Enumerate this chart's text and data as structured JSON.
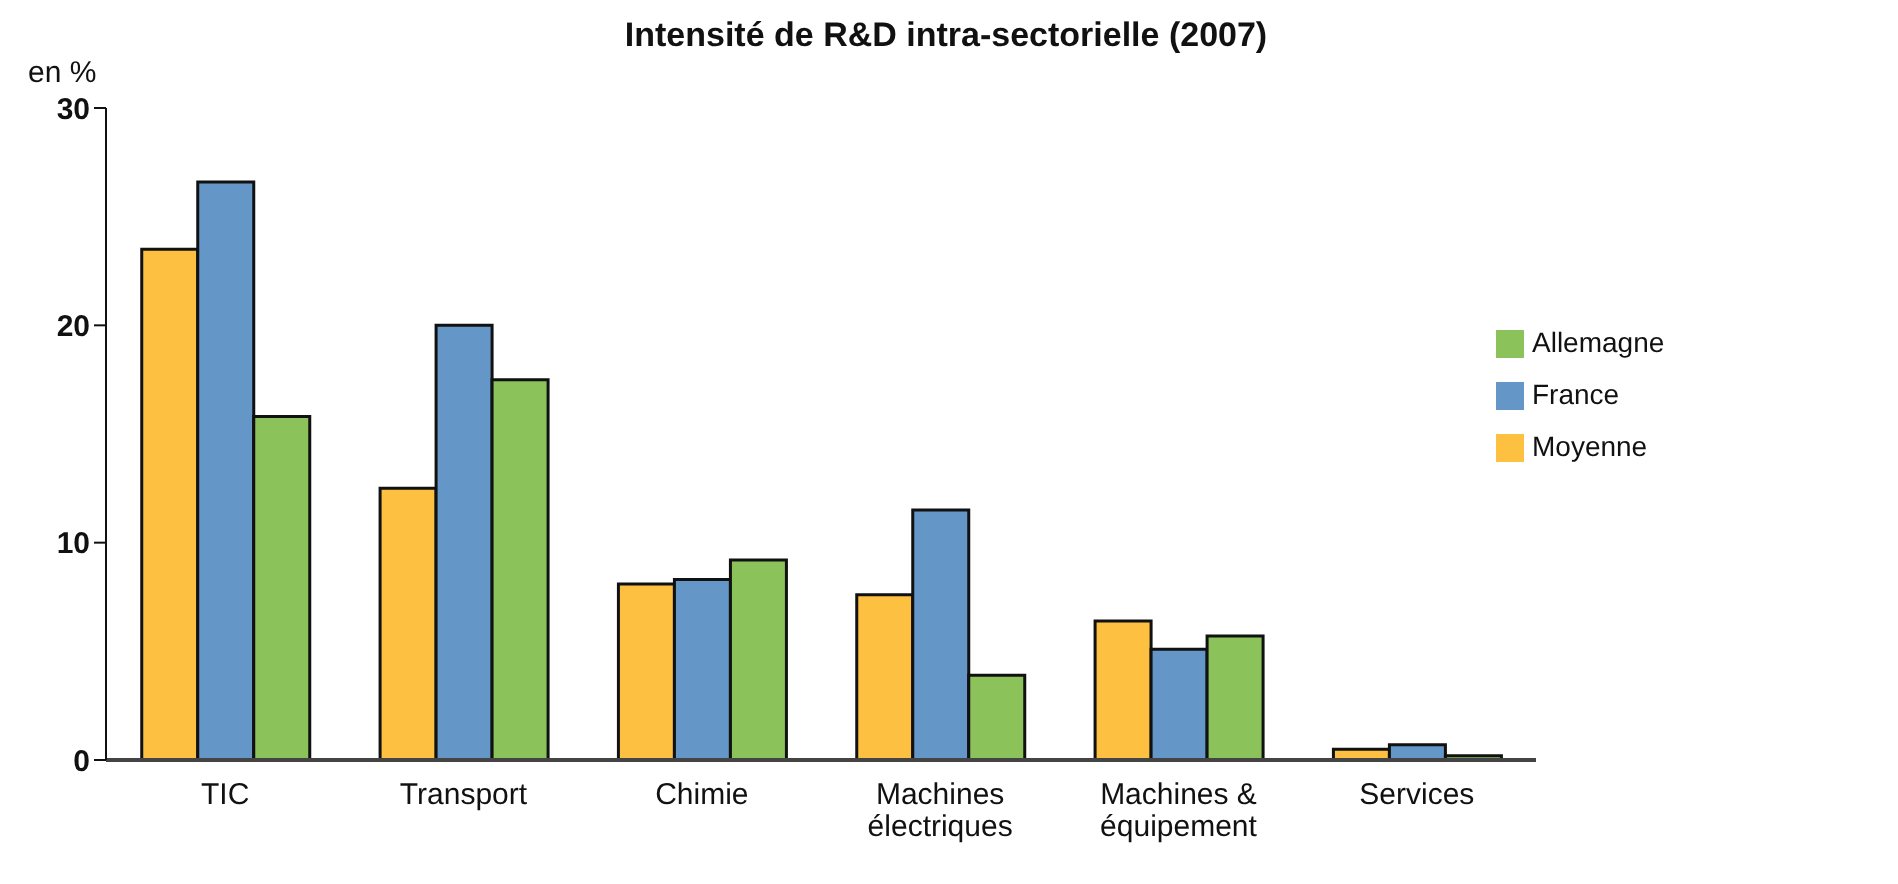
{
  "chart_data": {
    "type": "bar",
    "title": "Intensité de R&D intra-sectorielle (2007)",
    "ylabel": "en %",
    "categories": [
      "TIC",
      "Transport",
      "Chimie",
      "Machines\nélectriques",
      "Machines &\néquipement",
      "Services"
    ],
    "series": [
      {
        "name": "Moyenne",
        "color": "#fdc040",
        "values": [
          23.5,
          12.5,
          8.1,
          7.6,
          6.4,
          0.5
        ]
      },
      {
        "name": "France",
        "color": "#6497c8",
        "values": [
          26.6,
          20.0,
          8.3,
          11.5,
          5.1,
          0.7
        ]
      },
      {
        "name": "Allemagne",
        "color": "#8bc35a",
        "values": [
          15.8,
          17.5,
          9.2,
          3.9,
          5.7,
          0.2
        ]
      }
    ],
    "ylim": [
      0,
      30
    ],
    "yticks": [
      0,
      10,
      20,
      30
    ],
    "grid": false,
    "legend": "right"
  }
}
